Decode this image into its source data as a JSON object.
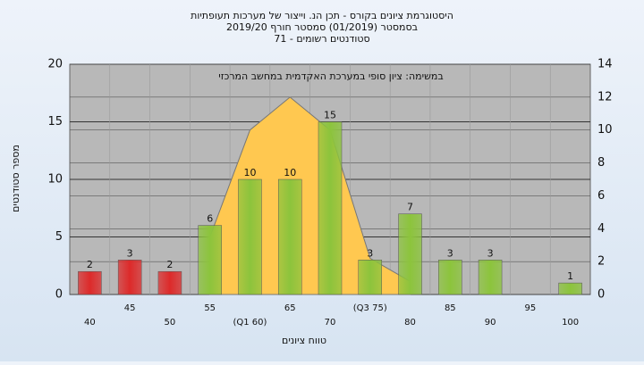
{
  "chart_data": {
    "type": "bar",
    "title": "היסטוגרמת ציונים בקורס - תכן הנ. וייצור של מערכות תעופתיות",
    "subtitle": "בסמסטר (01/2019) סמסטר חורף 2019/20",
    "subtitle2": "סטודנטים רשומים - 71",
    "annotation": "במשימה: ציון סופי במערכת האקדמית במחשב המרכזי",
    "ylabel": "מספר סטודנטים",
    "xlabel": "טווח ציונים",
    "categories": [
      "40",
      "45",
      "50",
      "55",
      "(Q1 60)",
      "65",
      "70",
      "(Q3 75)",
      "80",
      "85",
      "90",
      "95",
      "100"
    ],
    "series": [
      {
        "values": [
          2,
          3,
          2,
          6,
          10,
          10,
          15,
          3,
          7,
          3,
          3,
          null,
          1
        ],
        "colors": [
          "#dd2a2a",
          "#dd2a2a",
          "#dd2a2a",
          "#8cc43c",
          "#8cc43c",
          "#8cc43c",
          "#8cc43c",
          "#8cc43c",
          "#8cc43c",
          "#8cc43c",
          "#8cc43c",
          "#8cc43c",
          "#8cc43c"
        ]
      }
    ],
    "overlay": {
      "type": "area",
      "axis": "y2",
      "color": "#ffc850",
      "values": [
        null,
        null,
        null,
        3.5,
        10,
        12,
        10,
        2.2,
        0.8,
        null,
        null,
        null,
        null
      ]
    },
    "ylim": [
      0,
      20
    ],
    "yticks": [
      0,
      5,
      10,
      15,
      20
    ],
    "y2lim": [
      0,
      14
    ],
    "y2ticks": [
      0,
      2,
      4,
      6,
      8,
      10,
      12,
      14
    ],
    "grid": true
  }
}
